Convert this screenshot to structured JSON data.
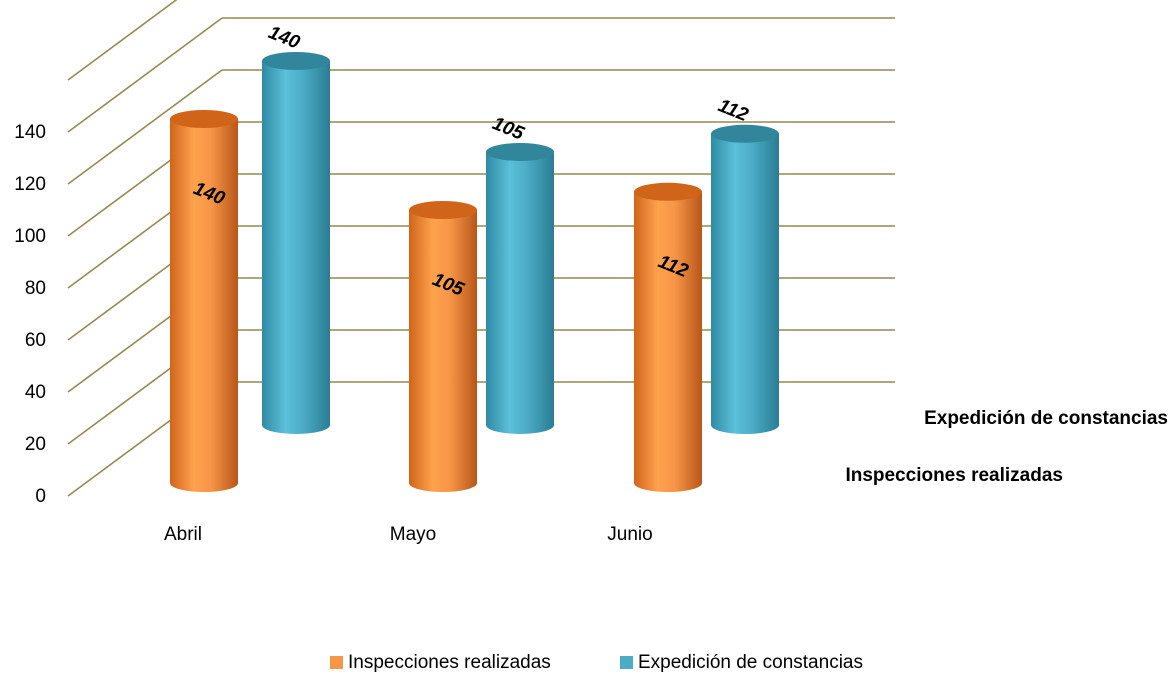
{
  "chart_data": {
    "type": "bar",
    "style": "3d-cylinder",
    "categories": [
      "Abril",
      "Mayo",
      "Junio"
    ],
    "series": [
      {
        "name": "Inspecciones realizadas",
        "values": [
          140,
          105,
          112
        ],
        "color": "#F79646"
      },
      {
        "name": "Expedición de constancias",
        "values": [
          140,
          105,
          112
        ],
        "color": "#4BACC6"
      }
    ],
    "y_ticks": [
      "0",
      "20",
      "40",
      "60",
      "80",
      "100",
      "120",
      "140"
    ],
    "ylim": [
      0,
      160
    ],
    "grid": true,
    "legend_position": "bottom",
    "data_labels": [
      "140",
      "105",
      "112",
      "140",
      "105",
      "112"
    ]
  }
}
